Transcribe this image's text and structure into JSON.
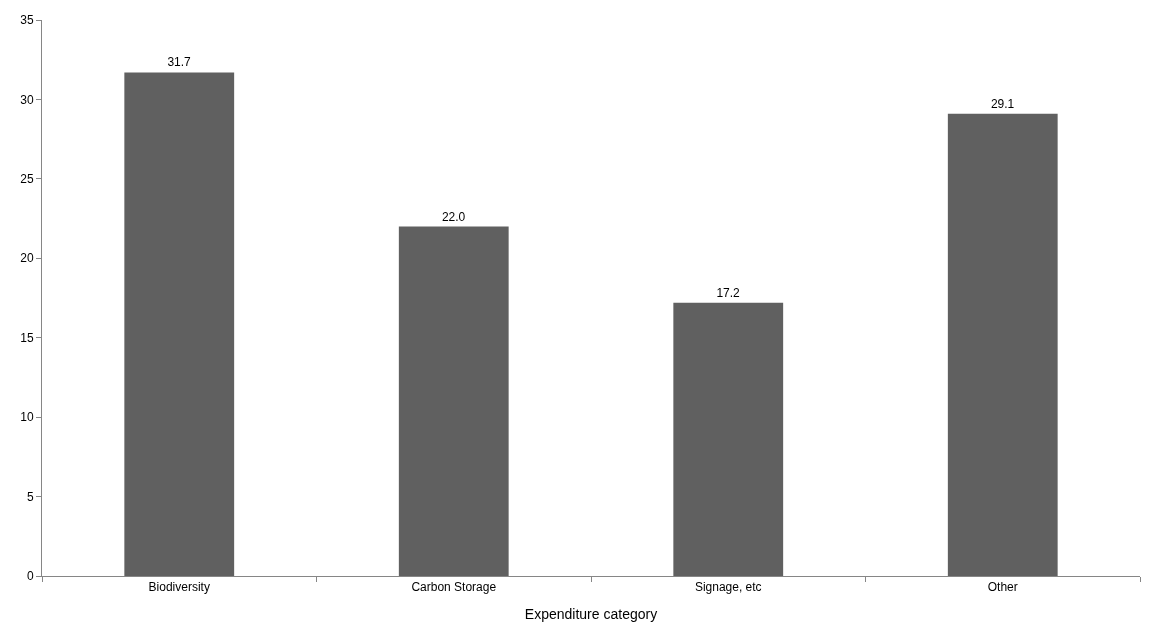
{
  "chart_data": {
    "type": "bar",
    "xlabel": "Expenditure category",
    "categories": [
      "Biodiversity",
      "Carbon Storage",
      "Signage, etc",
      "Other"
    ],
    "values": [
      31.7,
      22.0,
      17.2,
      29.1
    ],
    "value_labels": [
      "31.7",
      "22.0",
      "17.2",
      "29.1"
    ],
    "color": "#606060",
    "ylim": [
      0,
      35
    ],
    "yticks": [
      0,
      5,
      10,
      15,
      20,
      25,
      30,
      35
    ],
    "tick_labels": "xy"
  }
}
